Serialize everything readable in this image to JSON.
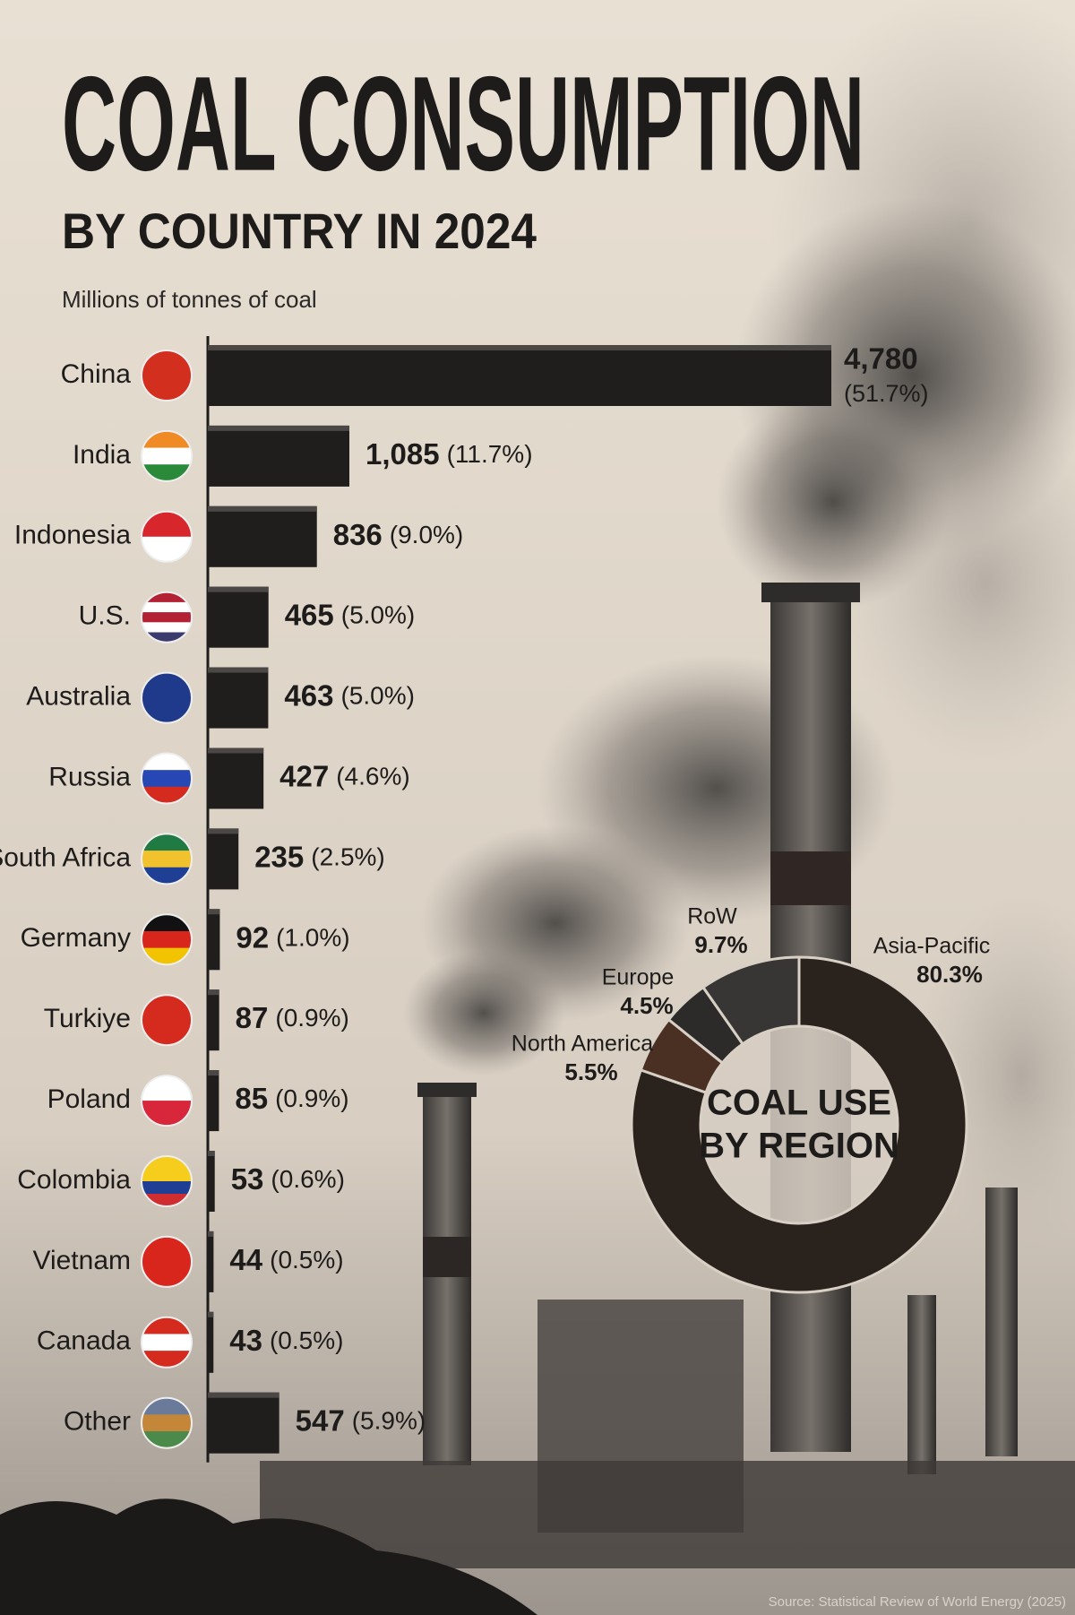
{
  "chart_data": [
    {
      "type": "bar",
      "orientation": "horizontal",
      "title": "COAL CONSUMPTION",
      "subtitle": "BY COUNTRY IN 2024",
      "axis_label": "Millions of tonnes of coal",
      "source": "Source: Statistical Review of World Energy (2025)",
      "categories": [
        "China",
        "India",
        "Indonesia",
        "U.S.",
        "Australia",
        "Russia",
        "South Africa",
        "Germany",
        "Turkiye",
        "Poland",
        "Colombia",
        "Vietnam",
        "Canada",
        "Other"
      ],
      "values": [
        4780,
        1085,
        836,
        465,
        463,
        427,
        235,
        92,
        87,
        85,
        53,
        44,
        43,
        547
      ],
      "value_labels": [
        "4,780",
        "1,085",
        "836",
        "465",
        "463",
        "427",
        "235",
        "92",
        "87",
        "85",
        "53",
        "44",
        "43",
        "547"
      ],
      "share_labels": [
        "(51.7%)",
        "(11.7%)",
        "(9.0%)",
        "(5.0%)",
        "(5.0%)",
        "(4.6%)",
        "(2.5%)",
        "(1.0%)",
        "(0.9%)",
        "(0.9%)",
        "(0.6%)",
        "(0.5%)",
        "(0.5%)",
        "(5.9%)"
      ],
      "color": "#1f1e1d"
    },
    {
      "type": "donut",
      "center_label": [
        "COAL USE",
        "BY REGION"
      ],
      "categories": [
        "Asia-Pacific",
        "North America",
        "Europe",
        "RoW"
      ],
      "values": [
        80.3,
        5.5,
        4.5,
        9.7
      ],
      "value_labels": [
        "80.3%",
        "5.5%",
        "4.5%",
        "9.7%"
      ],
      "colors": [
        "#2a221d",
        "#4a2f23",
        "#2c2b2a",
        "#383634"
      ]
    }
  ]
}
